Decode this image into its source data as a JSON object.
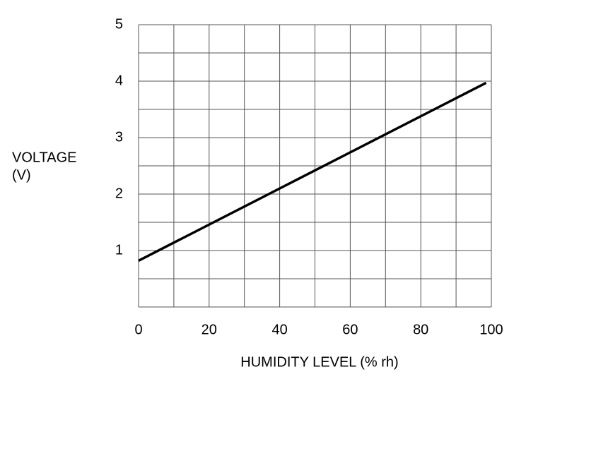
{
  "chart_data": {
    "type": "line",
    "xlabel": "HUMIDITY LEVEL (% rh)",
    "ylabel": [
      "VOLTAGE",
      "(V)"
    ],
    "x": [
      0,
      98.5
    ],
    "values": [
      0.82,
      3.97
    ],
    "color": "#000000",
    "xlim": [
      0,
      100
    ],
    "xticks": [
      0,
      20,
      40,
      60,
      80,
      100
    ],
    "ylim": [
      0,
      5
    ],
    "yticks": [
      1,
      2,
      3,
      4,
      5
    ],
    "grid": true,
    "xgrid": [
      0,
      10,
      20,
      30,
      40,
      50,
      60,
      70,
      80,
      90,
      100
    ],
    "ygrid": [
      0,
      0.5,
      1,
      1.5,
      2,
      2.5,
      3,
      3.5,
      4,
      4.5,
      5
    ]
  }
}
